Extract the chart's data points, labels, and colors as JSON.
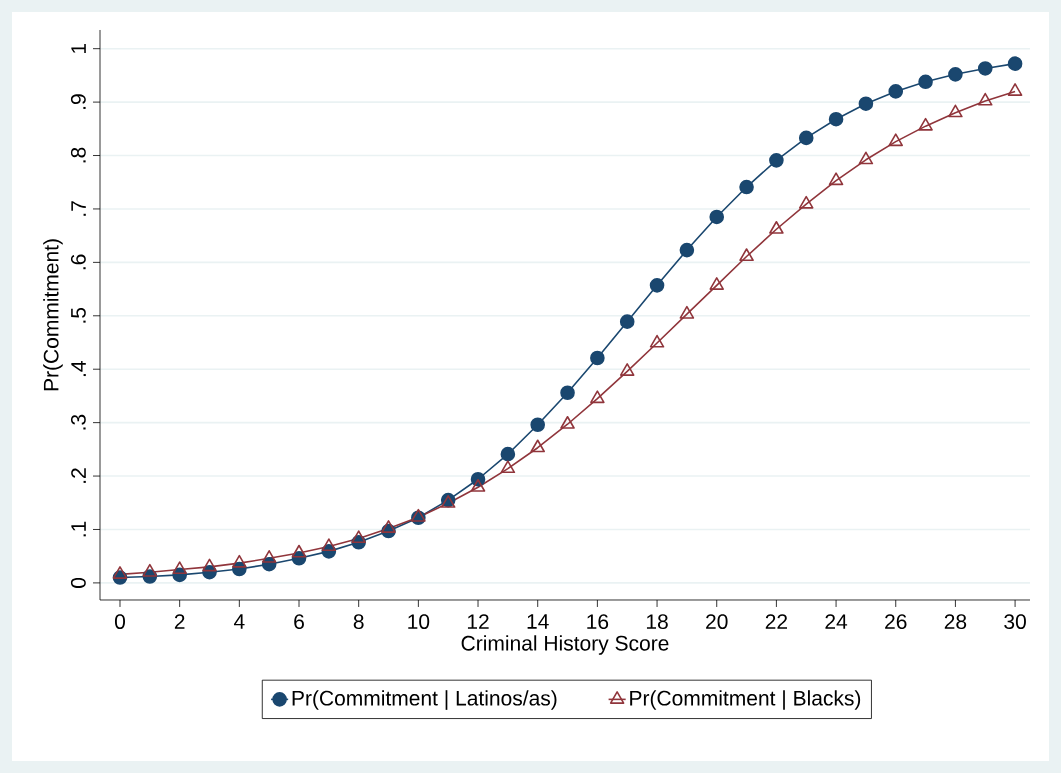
{
  "chart_data": {
    "type": "line",
    "xlabel": "Criminal History Score",
    "ylabel": "Pr(Commitment)",
    "x": [
      0,
      1,
      2,
      3,
      4,
      5,
      6,
      7,
      8,
      9,
      10,
      11,
      12,
      13,
      14,
      15,
      16,
      17,
      18,
      19,
      20,
      21,
      22,
      23,
      24,
      25,
      26,
      27,
      28,
      29,
      30
    ],
    "series": [
      {
        "name": "Pr(Commitment | Latinos/as)",
        "color": "#1a476f",
        "marker": "circle",
        "values": [
          0.01,
          0.012,
          0.015,
          0.02,
          0.026,
          0.035,
          0.046,
          0.059,
          0.076,
          0.097,
          0.122,
          0.155,
          0.194,
          0.241,
          0.296,
          0.356,
          0.421,
          0.489,
          0.557,
          0.623,
          0.685,
          0.741,
          0.791,
          0.833,
          0.868,
          0.897,
          0.92,
          0.938,
          0.952,
          0.963,
          0.972
        ]
      },
      {
        "name": "Pr(Commitment | Blacks)",
        "color": "#90353b",
        "marker": "triangle",
        "values": [
          0.016,
          0.02,
          0.025,
          0.03,
          0.037,
          0.046,
          0.056,
          0.068,
          0.083,
          0.102,
          0.123,
          0.149,
          0.179,
          0.214,
          0.253,
          0.297,
          0.345,
          0.396,
          0.449,
          0.503,
          0.557,
          0.611,
          0.662,
          0.709,
          0.753,
          0.792,
          0.826,
          0.855,
          0.88,
          0.902,
          0.92
        ]
      }
    ],
    "xlim": [
      -0.67,
      30.5
    ],
    "ylim": [
      -0.032,
      1.035
    ],
    "xticks": [
      0,
      2,
      4,
      6,
      8,
      10,
      12,
      14,
      16,
      18,
      20,
      22,
      24,
      26,
      28,
      30
    ],
    "yticks": [
      {
        "value": 0,
        "label": "0"
      },
      {
        "value": 0.1,
        "label": ".1"
      },
      {
        "value": 0.2,
        "label": ".2"
      },
      {
        "value": 0.3,
        "label": ".3"
      },
      {
        "value": 0.4,
        "label": ".4"
      },
      {
        "value": 0.5,
        "label": ".5"
      },
      {
        "value": 0.6,
        "label": ".6"
      },
      {
        "value": 0.7,
        "label": ".7"
      },
      {
        "value": 0.8,
        "label": ".8"
      },
      {
        "value": 0.9,
        "label": ".9"
      },
      {
        "value": 1,
        "label": "1"
      }
    ],
    "grid": "y",
    "legend": "bottom",
    "line_style": "solid"
  }
}
